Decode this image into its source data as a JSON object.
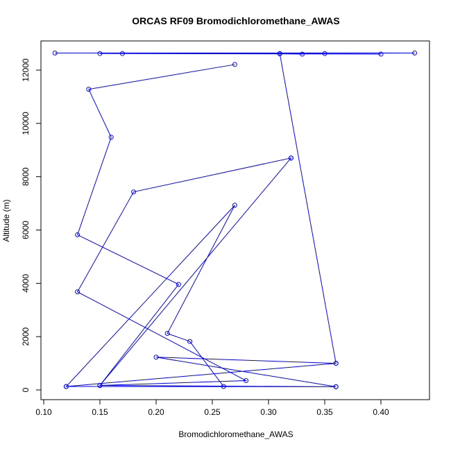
{
  "chart_data": {
    "type": "line",
    "title": "ORCAS RF09 Bromodichloromethane_AWAS",
    "xlabel": "Bromodichloromethane_AWAS",
    "ylabel": "Altitude (m)",
    "xlim": [
      0.1,
      0.43
    ],
    "ylim": [
      0,
      12700
    ],
    "xticks": [
      "0.10",
      "0.15",
      "0.20",
      "0.25",
      "0.30",
      "0.35",
      "0.40"
    ],
    "xtick_values": [
      0.1,
      0.15,
      0.2,
      0.25,
      0.3,
      0.35,
      0.4
    ],
    "yticks": [
      "0",
      "2000",
      "4000",
      "6000",
      "8000",
      "10000",
      "12000"
    ],
    "ytick_values": [
      0,
      2000,
      4000,
      6000,
      8000,
      10000,
      12000
    ],
    "grid": false,
    "series": [
      {
        "color": "#0000ff",
        "marker": "open-circle",
        "x": [
          0.11,
          0.43,
          0.17,
          0.4,
          0.15,
          0.35,
          0.31,
          0.33,
          0.31,
          0.36,
          0.12,
          0.36,
          0.2,
          0.36,
          0.12,
          0.27,
          0.21,
          0.23,
          0.26,
          0.36,
          0.15,
          0.32,
          0.15,
          0.28,
          0.13,
          0.18,
          0.32,
          0.15,
          0.22,
          0.13,
          0.16,
          0.14,
          0.27
        ],
        "y": [
          12640,
          12640,
          12620,
          12600,
          12620,
          12620,
          12610,
          12600,
          12620,
          1000,
          130,
          1000,
          1230,
          120,
          130,
          6930,
          2120,
          1820,
          130,
          120,
          170,
          8700,
          170,
          350,
          3680,
          7430,
          8700,
          170,
          3960,
          5820,
          9480,
          11280,
          12210
        ]
      }
    ]
  }
}
